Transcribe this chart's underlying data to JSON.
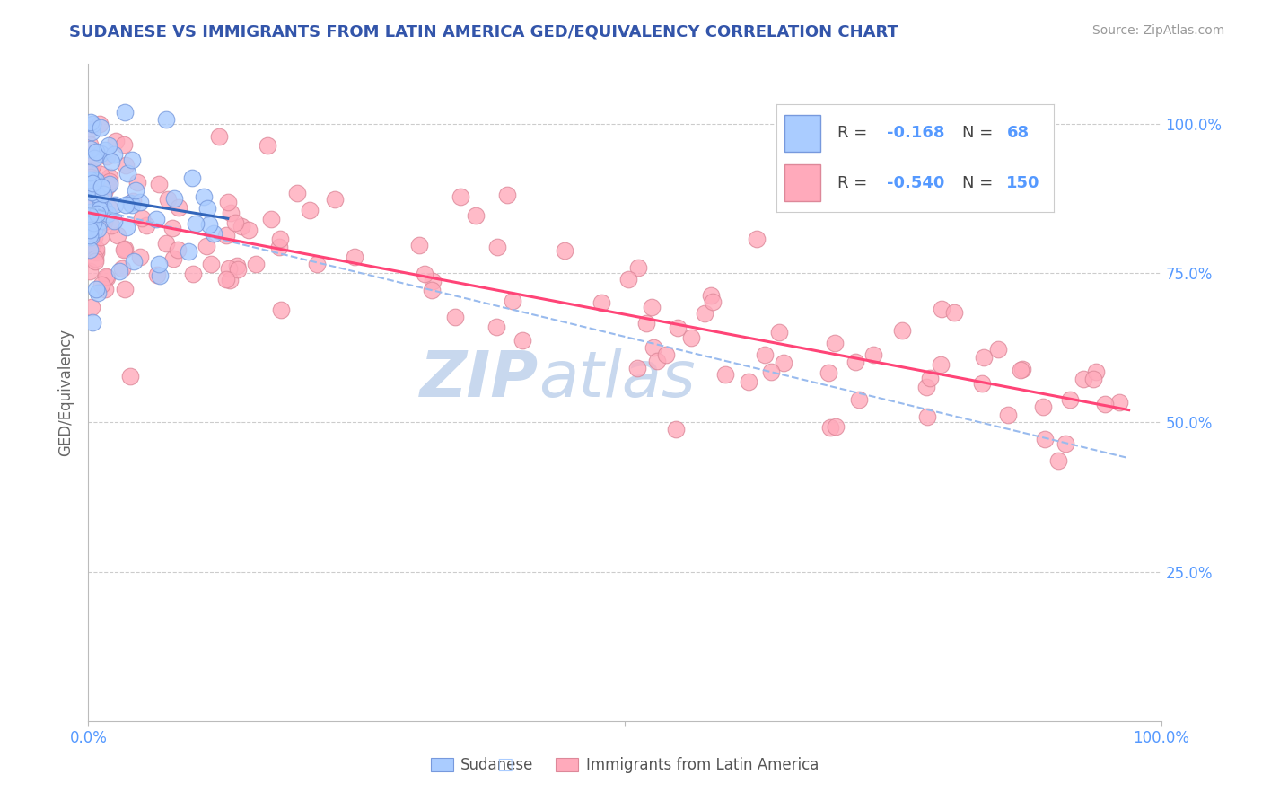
{
  "title": "SUDANESE VS IMMIGRANTS FROM LATIN AMERICA GED/EQUIVALENCY CORRELATION CHART",
  "source": "Source: ZipAtlas.com",
  "ylabel": "GED/Equivalency",
  "xlim": [
    0.0,
    1.0
  ],
  "ylim": [
    0.0,
    1.1
  ],
  "title_color": "#3355aa",
  "source_color": "#999999",
  "right_tick_color": "#5599ff",
  "grid_color": "#cccccc",
  "blue_scatter_color": "#aaccff",
  "blue_scatter_edge": "#7799dd",
  "pink_scatter_color": "#ffaabb",
  "pink_scatter_edge": "#dd8899",
  "blue_line_color": "#3366bb",
  "pink_line_color": "#ff4477",
  "dashed_line_color": "#99bbee",
  "R_blue": -0.168,
  "N_blue": 68,
  "R_pink": -0.54,
  "N_pink": 150,
  "legend_box_color": "#f8f8f8",
  "legend_border_color": "#dddddd"
}
